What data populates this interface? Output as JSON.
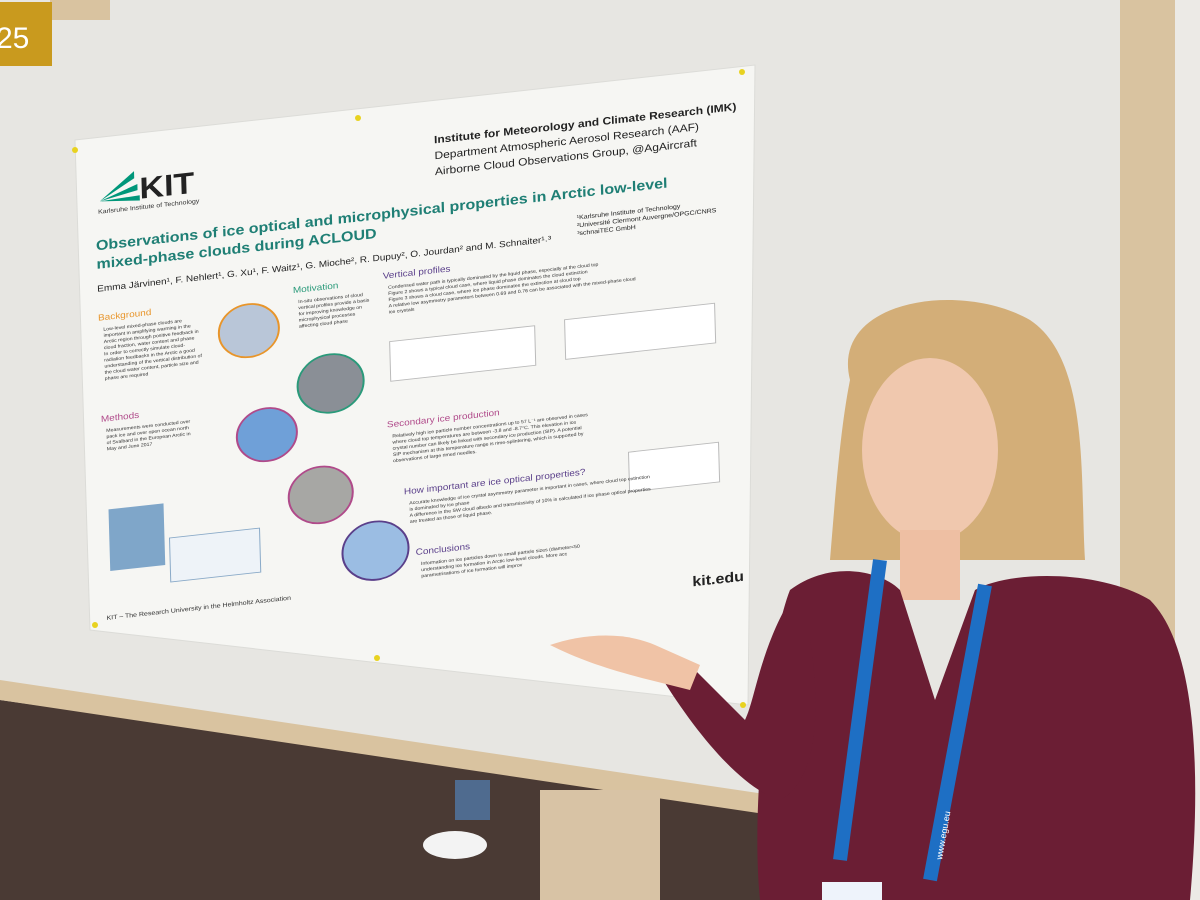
{
  "board_number": "25",
  "poster": {
    "logo": {
      "mark": "KIT",
      "caption": "Karlsruhe Institute of Technology"
    },
    "institute": [
      "Institute for Meteorology and Climate Research (IMK)",
      "Department Atmospheric Aerosol Research (AAF)",
      "Airborne Cloud Observations Group, @AgAircraft"
    ],
    "title": [
      "Observations of ice optical and microphysical properties in Arctic low-level",
      "mixed-phase clouds during ACLOUD"
    ],
    "authors": "Emma Järvinen¹, F. Nehlert¹, G. Xu¹, F. Waitz¹, G. Mioche², R. Dupuy², O. Jourdan² and M. Schnaiter¹˒³",
    "affiliations": [
      "¹Karlsruhe Institute of Technology",
      "²Université Clermont Auvergne/OPGC/CNRS",
      "³schnaiTEC GmbH"
    ],
    "sections": [
      {
        "heading": "Background",
        "text": [
          "Low-level mixed-phase clouds are",
          "important in amplifying warming in the",
          "Arctic region through positive feedback in",
          "cloud fraction, water content and phase",
          "In order to correctly simulate cloud-",
          "radiation feedbacks in the Arctic a good",
          "understanding of the vertical distribution of",
          "the cloud water content, particle size and",
          "phase are required"
        ]
      },
      {
        "heading": "Motivation",
        "text": [
          "In-situ observations of cloud",
          "vertical profiles provide a basis",
          "for improving knowledge on",
          "microphysical processes",
          "affecting cloud phase"
        ]
      },
      {
        "heading": "Vertical profiles",
        "text": [
          "Condensed water path is typically dominated by the liquid phase, especially at the cloud top",
          "Figure 2 shows a typical cloud case, where liquid phase dominates the cloud extinction",
          "Figure 3 shows a cloud case, where ice phase dominates the extinction at cloud top",
          "A relative low asymmetry parameters between 0.69 and 0.76 can be associated with the mixed-phase cloud",
          "ice crystals"
        ]
      },
      {
        "heading": "Methods",
        "text": [
          "Measurements were conducted over",
          "pack ice and over open ocean north",
          "of Svalbard in the European Arctic in",
          "May and June 2017"
        ]
      },
      {
        "heading": "Secondary ice production",
        "text": [
          "Relatively high ice particle number concentrations up to 57 L⁻¹ are observed in cases",
          "where cloud top temperatures are between -3.8 and -8.7°C. This elevation in ice",
          "crystal number can likely be linked with secondary ice production (SIP). A potential",
          "SIP mechanism at this temperature range is rime-splintering, which is supported by",
          "observations of large rimed needles."
        ]
      },
      {
        "heading": "How important are ice optical properties?",
        "text": [
          "Accurate knowledge of ice crystal asymmetry parameter is important in cases, where cloud top extinction",
          "is dominated by ice phase",
          "A difference in the SW cloud albedo and transmissivity of 10% is calculated if ice phase optical properties",
          "are treated as those of liquid phase."
        ]
      },
      {
        "heading": "Conclusions",
        "text": [
          "Information on ice particles down to small particle sizes (diameter<50",
          "understanding ice formation in Arctic low-level clouds. More acc",
          "parametrisations of ice formation will improv"
        ]
      }
    ],
    "footer": "KIT – The Research University in the Helmholtz Association",
    "url_fragment": "kit.edu"
  },
  "lanyard": "www.egu.eu"
}
